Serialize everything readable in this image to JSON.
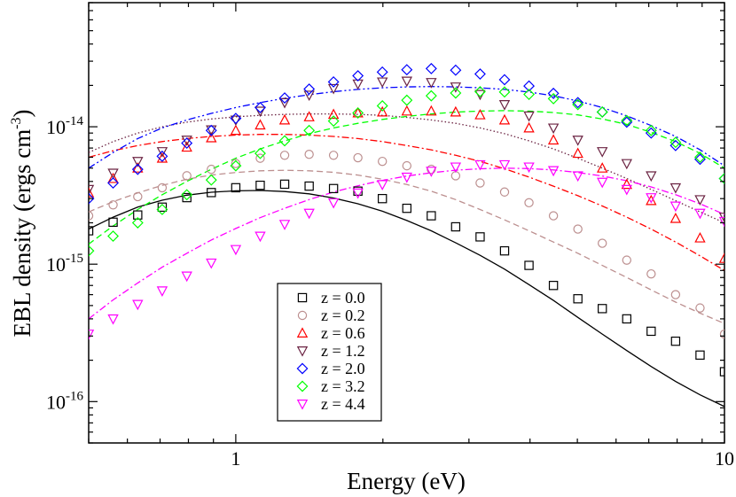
{
  "chart_data": {
    "type": "scatter",
    "title": "",
    "xlabel": "Energy (eV)",
    "ylabel": "EBL density (ergs cm-3)",
    "ylabel_parts": {
      "main": "EBL density (ergs cm",
      "sup": "-3",
      "close": ")"
    },
    "xscale": "log",
    "yscale": "log",
    "xlim": [
      0.5,
      10
    ],
    "ylim": [
      5e-17,
      8e-14
    ],
    "xtick_labels": [
      "1",
      "10"
    ],
    "ytick_labels": [
      {
        "base": "10",
        "exp": "-16"
      },
      {
        "base": "10",
        "exp": "-15"
      },
      {
        "base": "10",
        "exp": "-14"
      }
    ],
    "grid": false,
    "legend_position": "bottom-center",
    "series": [
      {
        "name": "z = 0.0",
        "color": "#000000",
        "marker": "square",
        "line": "solid",
        "x": [
          0.5,
          0.561,
          0.63,
          0.707,
          0.794,
          0.891,
          1.0,
          1.122,
          1.259,
          1.413,
          1.585,
          1.778,
          1.995,
          2.239,
          2.512,
          2.818,
          3.162,
          3.548,
          3.981,
          4.467,
          5.012,
          5.623,
          6.31,
          7.079,
          7.943,
          8.913,
          10.0
        ],
        "y": [
          1.75e-15,
          2.02e-15,
          2.28e-15,
          2.6e-15,
          3.05e-15,
          3.32e-15,
          3.6e-15,
          3.75e-15,
          3.82e-15,
          3.7e-15,
          3.55e-15,
          3.4e-15,
          3e-15,
          2.55e-15,
          2.25e-15,
          1.87e-15,
          1.58e-15,
          1.25e-15,
          9.8e-16,
          7e-16,
          5.6e-16,
          4.75e-16,
          4e-16,
          3.25e-16,
          2.75e-16,
          2.18e-16,
          1.65e-16
        ],
        "model_y": [
          1.8e-15,
          2.2e-15,
          2.6e-15,
          2.92e-15,
          3.18e-15,
          3.34e-15,
          3.42e-15,
          3.44e-15,
          3.38e-15,
          3.25e-15,
          3.03e-15,
          2.75e-15,
          2.43e-15,
          2.08e-15,
          1.75e-15,
          1.43e-15,
          1.16e-15,
          9.2e-16,
          7.1e-16,
          5.45e-16,
          4.1e-16,
          3.1e-16,
          2.35e-16,
          1.8e-16,
          1.4e-16,
          1.12e-16,
          9.2e-17
        ]
      },
      {
        "name": "z = 0.2",
        "color": "#bc8f8f",
        "marker": "circle",
        "line": "dashed",
        "x": [
          0.5,
          0.561,
          0.63,
          0.707,
          0.794,
          0.891,
          1.0,
          1.122,
          1.259,
          1.413,
          1.585,
          1.778,
          1.995,
          2.239,
          2.512,
          2.818,
          3.162,
          3.548,
          3.981,
          4.467,
          5.012,
          5.623,
          6.31,
          7.079,
          7.943,
          8.913,
          10.0
        ],
        "y": [
          2.25e-15,
          2.7e-15,
          3.1e-15,
          3.6e-15,
          4.4e-15,
          4.9e-15,
          5.4e-15,
          5.9e-15,
          6.2e-15,
          6.3e-15,
          6.2e-15,
          5.95e-15,
          5.6e-15,
          5.2e-15,
          4.9e-15,
          4.4e-15,
          3.9e-15,
          3.35e-15,
          2.8e-15,
          2.25e-15,
          1.8e-15,
          1.42e-15,
          1.07e-15,
          8.5e-16,
          6e-16,
          4.8e-16,
          3.1e-16
        ],
        "model_y": [
          2.4e-15,
          2.85e-15,
          3.3e-15,
          3.75e-15,
          4.15e-15,
          4.45e-15,
          4.65e-15,
          4.78e-15,
          4.82e-15,
          4.78e-15,
          4.66e-15,
          4.45e-15,
          4.15e-15,
          3.8e-15,
          3.4e-15,
          2.95e-15,
          2.5e-15,
          2.1e-15,
          1.75e-15,
          1.45e-15,
          1.2e-15,
          9.8e-16,
          8e-16,
          6.5e-16,
          5.3e-16,
          4.4e-16,
          3.7e-16
        ]
      },
      {
        "name": "z = 0.6",
        "color": "#ff0000",
        "marker": "triangle-up",
        "line": "dashdot",
        "x": [
          0.5,
          0.561,
          0.63,
          0.707,
          0.794,
          0.891,
          1.0,
          1.122,
          1.259,
          1.413,
          1.585,
          1.778,
          1.995,
          2.239,
          2.512,
          2.818,
          3.162,
          3.548,
          3.981,
          4.467,
          5.012,
          5.623,
          6.31,
          7.079,
          7.943,
          8.913,
          10.0
        ],
        "y": [
          3.3e-15,
          4.2e-15,
          5e-15,
          5.9e-15,
          7.1e-15,
          8.3e-15,
          9.4e-15,
          1.03e-14,
          1.12e-14,
          1.18e-14,
          1.23e-14,
          1.26e-14,
          1.28e-14,
          1.3e-14,
          1.3e-14,
          1.28e-14,
          1.22e-14,
          1.12e-14,
          9.8e-15,
          8e-15,
          6.4e-15,
          5e-15,
          3.8e-15,
          2.9e-15,
          2.15e-15,
          1.55e-15,
          1.1e-15
        ],
        "model_y": [
          6e-15,
          6.7e-15,
          7.3e-15,
          7.8e-15,
          8.2e-15,
          8.5e-15,
          8.7e-15,
          8.8e-15,
          8.8e-15,
          8.7e-15,
          8.5e-15,
          8.2e-15,
          7.8e-15,
          7.3e-15,
          6.8e-15,
          6.2e-15,
          5.6e-15,
          4.95e-15,
          4.3e-15,
          3.7e-15,
          3.15e-15,
          2.65e-15,
          2.2e-15,
          1.8e-15,
          1.45e-15,
          1.15e-15,
          9e-16
        ]
      },
      {
        "name": "z = 1.2",
        "color": "#6b2342",
        "marker": "triangle-down",
        "line": "dotted",
        "x": [
          0.5,
          0.561,
          0.63,
          0.707,
          0.794,
          0.891,
          1.0,
          1.122,
          1.259,
          1.413,
          1.585,
          1.778,
          1.995,
          2.239,
          2.512,
          2.818,
          3.162,
          3.548,
          3.981,
          4.467,
          5.012,
          5.623,
          6.31,
          7.079,
          7.943,
          8.913,
          10.0
        ],
        "y": [
          3.5e-15,
          4.6e-15,
          5.6e-15,
          6.6e-15,
          8e-15,
          9.5e-15,
          1.12e-14,
          1.3e-14,
          1.5e-14,
          1.7e-14,
          1.9e-14,
          2.05e-14,
          2.12e-14,
          2.15e-14,
          2.1e-14,
          1.95e-14,
          1.72e-14,
          1.45e-14,
          1.2e-14,
          9.8e-15,
          8e-15,
          6.6e-15,
          5.4e-15,
          4.4e-15,
          3.6e-15,
          2.95e-15,
          2.2e-15
        ],
        "model_y": [
          6.5e-15,
          7.8e-15,
          9e-15,
          1e-14,
          1.08e-14,
          1.14e-14,
          1.18e-14,
          1.21e-14,
          1.23e-14,
          1.24e-14,
          1.24e-14,
          1.23e-14,
          1.21e-14,
          1.17e-14,
          1.12e-14,
          1.06e-14,
          9.8e-15,
          8.9e-15,
          7.9e-15,
          6.9e-15,
          5.9e-15,
          5e-15,
          4.2e-15,
          3.5e-15,
          2.9e-15,
          2.4e-15,
          2e-15
        ]
      },
      {
        "name": "z = 2.0",
        "color": "#0000ff",
        "marker": "diamond",
        "line": "dashdotdot",
        "x": [
          0.5,
          0.561,
          0.63,
          0.707,
          0.794,
          0.891,
          1.0,
          1.122,
          1.259,
          1.413,
          1.585,
          1.778,
          1.995,
          2.239,
          2.512,
          2.818,
          3.162,
          3.548,
          3.981,
          4.467,
          5.012,
          5.623,
          6.31,
          7.079,
          7.943,
          8.913,
          10.0
        ],
        "y": [
          3e-15,
          3.9e-15,
          4.9e-15,
          6.1e-15,
          7.6e-15,
          9.4e-15,
          1.15e-14,
          1.38e-14,
          1.62e-14,
          1.88e-14,
          2.12e-14,
          2.35e-14,
          2.5e-14,
          2.6e-14,
          2.65e-14,
          2.58e-14,
          2.42e-14,
          2.2e-14,
          1.98e-14,
          1.75e-14,
          1.5e-14,
          1.28e-14,
          1.08e-14,
          9e-15,
          7.3e-15,
          5.8e-15,
          4.2e-15
        ],
        "model_y": [
          5e-15,
          6.5e-15,
          8.2e-15,
          9.8e-15,
          1.12e-14,
          1.25e-14,
          1.38e-14,
          1.5e-14,
          1.61e-14,
          1.71e-14,
          1.8e-14,
          1.87e-14,
          1.92e-14,
          1.95e-14,
          1.96e-14,
          1.95e-14,
          1.92e-14,
          1.87e-14,
          1.79e-14,
          1.68e-14,
          1.54e-14,
          1.38e-14,
          1.2e-14,
          1.02e-14,
          8.5e-15,
          6.8e-15,
          5.2e-15
        ]
      },
      {
        "name": "z = 3.2",
        "color": "#00ff00",
        "marker": "diamond",
        "line": "dashed",
        "x": [
          0.5,
          0.561,
          0.63,
          0.707,
          0.794,
          0.891,
          1.0,
          1.122,
          1.259,
          1.413,
          1.585,
          1.778,
          1.995,
          2.239,
          2.512,
          2.818,
          3.162,
          3.548,
          3.981,
          4.467,
          5.012,
          5.623,
          6.31,
          7.079,
          7.943,
          8.913,
          10.0
        ],
        "y": [
          1.25e-15,
          1.6e-15,
          2e-15,
          2.5e-15,
          3.2e-15,
          4.1e-15,
          5.2e-15,
          6.4e-15,
          7.9e-15,
          9.4e-15,
          1.1e-14,
          1.26e-14,
          1.42e-14,
          1.56e-14,
          1.68e-14,
          1.76e-14,
          1.8e-14,
          1.79e-14,
          1.72e-14,
          1.6e-14,
          1.45e-14,
          1.28e-14,
          1.11e-14,
          9.4e-15,
          7.7e-15,
          6e-15,
          4.2e-15
        ],
        "model_y": [
          1.4e-15,
          1.9e-15,
          2.5e-15,
          3.2e-15,
          4e-15,
          4.9e-15,
          5.9e-15,
          6.9e-15,
          7.9e-15,
          8.9e-15,
          9.8e-15,
          1.06e-14,
          1.13e-14,
          1.19e-14,
          1.24e-14,
          1.28e-14,
          1.3e-14,
          1.31e-14,
          1.3e-14,
          1.27e-14,
          1.22e-14,
          1.14e-14,
          1.04e-14,
          9.1e-15,
          7.8e-15,
          6.4e-15,
          5e-15
        ]
      },
      {
        "name": "z = 4.4",
        "color": "#ff00ff",
        "marker": "triangle-down",
        "line": "dashdot",
        "x": [
          0.5,
          0.561,
          0.63,
          0.707,
          0.794,
          0.891,
          1.0,
          1.122,
          1.259,
          1.413,
          1.585,
          1.778,
          1.995,
          2.239,
          2.512,
          2.818,
          3.162,
          3.548,
          3.981,
          4.467,
          5.012,
          5.623,
          6.31,
          7.079,
          7.943,
          8.913,
          10.0
        ],
        "y": [
          3.1e-16,
          4e-16,
          5.1e-16,
          6.4e-16,
          8.2e-16,
          1.02e-15,
          1.28e-15,
          1.6e-15,
          1.95e-15,
          2.35e-15,
          2.8e-15,
          3.3e-15,
          3.8e-15,
          4.3e-15,
          4.75e-15,
          5.1e-15,
          5.3e-15,
          5.3e-15,
          5.1e-15,
          4.8e-15,
          4.4e-15,
          3.95e-15,
          3.5e-15,
          3.05e-15,
          2.65e-15,
          2.35e-15,
          2.05e-15
        ],
        "model_y": [
          4e-16,
          5.5e-16,
          7.3e-16,
          9.5e-16,
          1.2e-15,
          1.5e-15,
          1.82e-15,
          2.18e-15,
          2.55e-15,
          2.95e-15,
          3.35e-15,
          3.72e-15,
          4.07e-15,
          4.38e-15,
          4.63e-15,
          4.83e-15,
          4.95e-15,
          5e-15,
          4.96e-15,
          4.85e-15,
          4.65e-15,
          4.38e-15,
          4.05e-15,
          3.65e-15,
          3.2e-15,
          2.75e-15,
          2.3e-15
        ]
      }
    ]
  }
}
